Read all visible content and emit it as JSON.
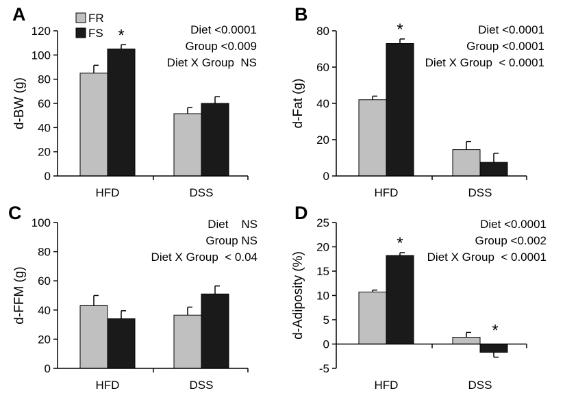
{
  "legend": [
    {
      "label": "FR",
      "color": "#c0c0c0"
    },
    {
      "label": "FS",
      "color": "#1a1a1a"
    }
  ],
  "chart_data": [
    {
      "panel": "A",
      "type": "bar",
      "categories": [
        "HFD",
        "DSS"
      ],
      "series": [
        {
          "name": "FR",
          "color": "#c0c0c0",
          "values": [
            85,
            51.5
          ],
          "errors": [
            6.5,
            5
          ]
        },
        {
          "name": "FS",
          "color": "#1a1a1a",
          "values": [
            105,
            60
          ],
          "errors": [
            3.5,
            5.5
          ]
        }
      ],
      "ylabel": "d-BW (g)",
      "ylim": [
        0,
        120
      ],
      "yticks": [
        0,
        20,
        40,
        60,
        80,
        100,
        120
      ],
      "significance": [
        {
          "category": "HFD",
          "series": "FS",
          "label": "*"
        }
      ],
      "stats": [
        "Diet <0.0001",
        "Group <0.009",
        "Diet X Group  NS"
      ]
    },
    {
      "panel": "B",
      "type": "bar",
      "categories": [
        "HFD",
        "DSS"
      ],
      "series": [
        {
          "name": "FR",
          "color": "#c0c0c0",
          "values": [
            42,
            14.5
          ],
          "errors": [
            2,
            4.5
          ]
        },
        {
          "name": "FS",
          "color": "#1a1a1a",
          "values": [
            73,
            7.5
          ],
          "errors": [
            2.5,
            5
          ]
        }
      ],
      "ylabel": "d-Fat (g)",
      "ylim": [
        0,
        80
      ],
      "yticks": [
        0,
        20,
        40,
        60,
        80
      ],
      "significance": [
        {
          "category": "HFD",
          "series": "FS",
          "label": "*"
        }
      ],
      "stats": [
        "Diet <0.0001",
        "Group <0.0001",
        "Diet X Group  < 0.0001"
      ]
    },
    {
      "panel": "C",
      "type": "bar",
      "categories": [
        "HFD",
        "DSS"
      ],
      "series": [
        {
          "name": "FR",
          "color": "#c0c0c0",
          "values": [
            43,
            36.5
          ],
          "errors": [
            7,
            5.5
          ]
        },
        {
          "name": "FS",
          "color": "#1a1a1a",
          "values": [
            34,
            51
          ],
          "errors": [
            5.5,
            5.5
          ]
        }
      ],
      "ylabel": "d-FFM (g)",
      "ylim": [
        0,
        100
      ],
      "yticks": [
        0,
        20,
        40,
        60,
        80,
        100
      ],
      "significance": [],
      "stats": [
        "Diet    NS",
        "Group NS",
        "Diet X Group  < 0.04"
      ]
    },
    {
      "panel": "D",
      "type": "bar",
      "categories": [
        "HFD",
        "DSS"
      ],
      "series": [
        {
          "name": "FR",
          "color": "#c0c0c0",
          "values": [
            10.7,
            1.4
          ],
          "errors": [
            0.4,
            1
          ]
        },
        {
          "name": "FS",
          "color": "#1a1a1a",
          "values": [
            18.2,
            -1.7
          ],
          "errors": [
            0.6,
            1
          ]
        }
      ],
      "ylabel": "d-Adiposity (%)",
      "ylim": [
        -5,
        25
      ],
      "yticks": [
        -5,
        0,
        5,
        10,
        15,
        20,
        25
      ],
      "significance": [
        {
          "category": "HFD",
          "series": "FS",
          "label": "*"
        },
        {
          "category": "DSS",
          "series": "FS",
          "label": "*"
        }
      ],
      "stats": [
        "Diet <0.0001",
        "Group <0.002",
        "Diet X Group  < 0.0001"
      ]
    }
  ]
}
